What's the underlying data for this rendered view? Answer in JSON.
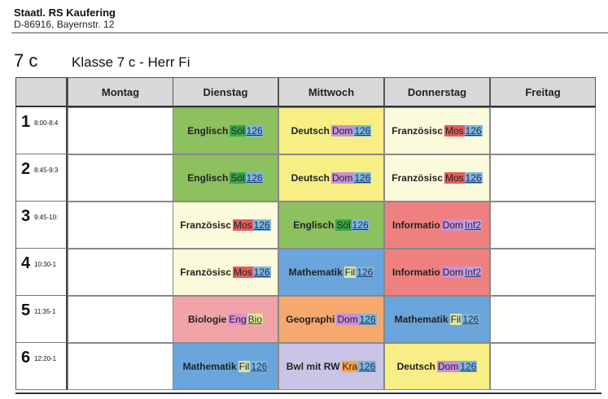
{
  "school": {
    "name": "Staatl. RS Kaufering",
    "address": "D-86916, Bayernstr. 12"
  },
  "class": {
    "code": "7 c",
    "title": "Klasse 7 c - Herr Fi"
  },
  "days": [
    "Montag",
    "Dienstag",
    "Mittwoch",
    "Donnerstag",
    "Freitag"
  ],
  "periods": [
    {
      "num": "1",
      "time": "8:00-8:4"
    },
    {
      "num": "2",
      "time": "8:45-9:3"
    },
    {
      "num": "3",
      "time": "9:45-10:"
    },
    {
      "num": "4",
      "time": "10:30-1"
    },
    {
      "num": "5",
      "time": "11:35-1"
    },
    {
      "num": "6",
      "time": "12:20-1"
    }
  ],
  "lessons": [
    [
      null,
      {
        "subject": "Englisch",
        "teacher": "Söl",
        "room": "126",
        "bg": "#8dc05e",
        "teacher_bg": "#3aa64a",
        "room_bg": "#7fb6d6"
      },
      {
        "subject": "Deutsch",
        "teacher": "Dom",
        "room": "126",
        "bg": "#f7ee85",
        "teacher_bg": "#c890d8",
        "room_bg": "#7fb6d6"
      },
      {
        "subject": "Französisc",
        "teacher": "Mos",
        "room": "126",
        "bg": "#fcfadc",
        "teacher_bg": "#e15d5d",
        "room_bg": "#7fb6d6"
      },
      null
    ],
    [
      null,
      {
        "subject": "Englisch",
        "teacher": "Söl",
        "room": "126",
        "bg": "#8dc05e",
        "teacher_bg": "#3aa64a",
        "room_bg": "#7fb6d6"
      },
      {
        "subject": "Deutsch",
        "teacher": "Dom",
        "room": "126",
        "bg": "#f7ee85",
        "teacher_bg": "#c890d8",
        "room_bg": "#7fb6d6"
      },
      {
        "subject": "Französisc",
        "teacher": "Mos",
        "room": "126",
        "bg": "#fcfadc",
        "teacher_bg": "#e15d5d",
        "room_bg": "#7fb6d6"
      },
      null
    ],
    [
      null,
      {
        "subject": "Französisc",
        "teacher": "Mos",
        "room": "126",
        "bg": "#fcfadc",
        "teacher_bg": "#e15d5d",
        "room_bg": "#7fb6d6"
      },
      {
        "subject": "Englisch",
        "teacher": "Söl",
        "room": "126",
        "bg": "#8dc05e",
        "teacher_bg": "#3aa64a",
        "room_bg": "#7fb6d6"
      },
      {
        "subject": "Informatio",
        "teacher": "Dom",
        "room": "Inf2",
        "bg": "#ef8080",
        "teacher_bg": "#c890d8",
        "room_bg": "#c7a0d8"
      },
      null
    ],
    [
      null,
      {
        "subject": "Französisc",
        "teacher": "Mos",
        "room": "126",
        "bg": "#fcfadc",
        "teacher_bg": "#e15d5d",
        "room_bg": "#7fb6d6"
      },
      {
        "subject": "Mathematik",
        "teacher": "Fil",
        "room": "126",
        "bg": "#6aa6dc",
        "teacher_bg": "#d4e7a8",
        "room_bg": "#7fb6d6"
      },
      {
        "subject": "Informatio",
        "teacher": "Dom",
        "room": "Inf2",
        "bg": "#ef8080",
        "teacher_bg": "#c890d8",
        "room_bg": "#c7a0d8"
      },
      null
    ],
    [
      null,
      {
        "subject": "Biologie",
        "teacher": "Eng",
        "room": "Bio",
        "bg": "#f2a3a8",
        "teacher_bg": "#e08fd0",
        "room_bg": "#f0e68c"
      },
      {
        "subject": "Geographi",
        "teacher": "Dom",
        "room": "126",
        "bg": "#f6a86e",
        "teacher_bg": "#c890d8",
        "room_bg": "#7fb6d6"
      },
      {
        "subject": "Mathematik",
        "teacher": "Fil",
        "room": "126",
        "bg": "#6aa6dc",
        "teacher_bg": "#d4e7a8",
        "room_bg": "#7fb6d6"
      },
      null
    ],
    [
      null,
      {
        "subject": "Mathematik",
        "teacher": "Fil",
        "room": "126",
        "bg": "#6aa6dc",
        "teacher_bg": "#d4e7a8",
        "room_bg": "#7fb6d6"
      },
      {
        "subject": "Bwl mit RW",
        "teacher": "Kra",
        "room": "126",
        "bg": "#c9c5e6",
        "teacher_bg": "#f6a34a",
        "room_bg": "#7fb6d6"
      },
      {
        "subject": "Deutsch",
        "teacher": "Dom",
        "room": "126",
        "bg": "#f7ee85",
        "teacher_bg": "#c890d8",
        "room_bg": "#7fb6d6"
      },
      null
    ]
  ]
}
